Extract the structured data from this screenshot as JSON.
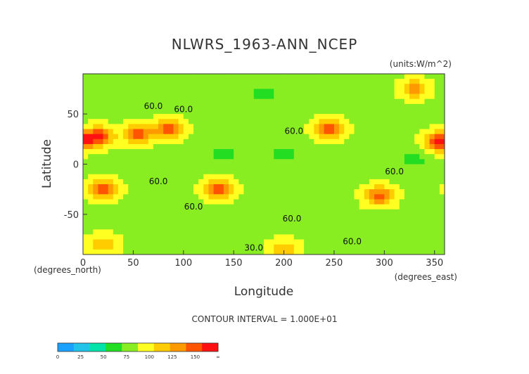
{
  "chart_data": {
    "type": "heatmap",
    "title": "NLWRS_1963-ANN_NCEP",
    "units": "(units:W/m^2)",
    "xlabel": "Longitude",
    "ylabel": "Latitude",
    "x_unit_note": "(degrees_east)",
    "y_unit_note": "(degrees_north)",
    "xlim": [
      0,
      360
    ],
    "ylim": [
      -90,
      90
    ],
    "x_ticks": [
      0,
      50,
      100,
      150,
      200,
      250,
      300,
      350
    ],
    "y_ticks": [
      50,
      0,
      -50
    ],
    "contour_interval_text": "CONTOUR INTERVAL = 1.000E+01",
    "contour_labels": [
      {
        "text": "60.0",
        "lon": 70,
        "lat": 55
      },
      {
        "text": "60.0",
        "lon": 100,
        "lat": 52
      },
      {
        "text": "60.0",
        "lon": 210,
        "lat": 30
      },
      {
        "text": "60.0",
        "lon": 75,
        "lat": -20
      },
      {
        "text": "60.0",
        "lon": 110,
        "lat": -45
      },
      {
        "text": "60.0",
        "lon": 310,
        "lat": -10
      },
      {
        "text": "60.0",
        "lon": 208,
        "lat": -57
      },
      {
        "text": "60.0",
        "lon": 268,
        "lat": -80
      },
      {
        "text": "30.0",
        "lon": 170,
        "lat": -86
      }
    ],
    "colorbar": {
      "labels": [
        "0",
        "25",
        "50",
        "75",
        "100",
        "125",
        "150",
        "∞"
      ],
      "colors": [
        "#1aa0ff",
        "#22c3e8",
        "#00e3a8",
        "#22dd22",
        "#88ee22",
        "#ffff22",
        "#ffcc00",
        "#ff9900",
        "#ff5500",
        "#ff1111"
      ]
    },
    "fields": {
      "background_value": 60,
      "features": [
        {
          "lon": 15,
          "lat": 28,
          "value": 115
        },
        {
          "lon": 55,
          "lat": 30,
          "value": 110
        },
        {
          "lon": 85,
          "lat": 35,
          "value": 105
        },
        {
          "lon": 20,
          "lat": -25,
          "value": 110
        },
        {
          "lon": 135,
          "lat": -25,
          "value": 112
        },
        {
          "lon": 245,
          "lat": 35,
          "value": 110
        },
        {
          "lon": 295,
          "lat": -32,
          "value": 108
        },
        {
          "lon": 355,
          "lat": 22,
          "value": 115
        },
        {
          "lon": 330,
          "lat": 75,
          "value": 95
        },
        {
          "lon": 200,
          "lat": 10,
          "value": 45
        },
        {
          "lon": 140,
          "lat": 10,
          "value": 45
        },
        {
          "lon": 330,
          "lat": 5,
          "value": 45
        },
        {
          "lon": 180,
          "lat": 70,
          "value": 45
        },
        {
          "lon": 20,
          "lat": -80,
          "value": 90
        },
        {
          "lon": 200,
          "lat": -85,
          "value": 85
        }
      ]
    }
  }
}
